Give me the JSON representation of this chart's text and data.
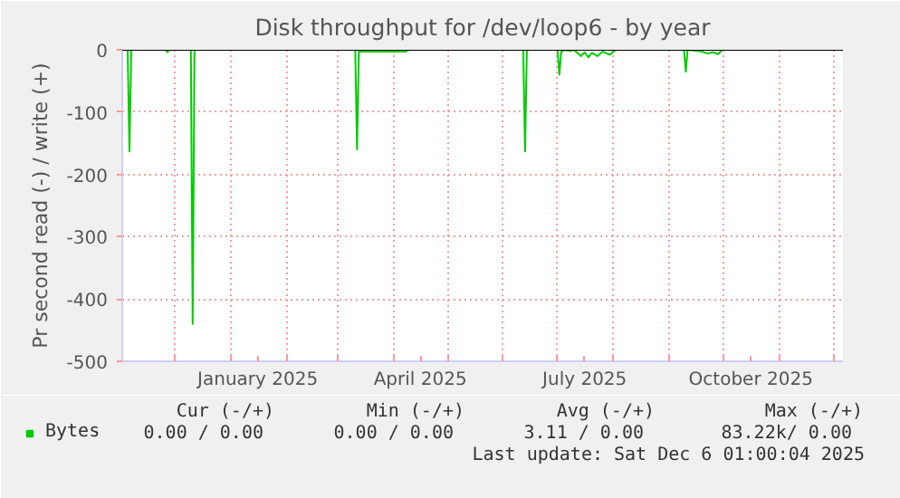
{
  "chart_data": {
    "type": "line",
    "title": "Disk throughput for /dev/loop6 - by year",
    "ylabel": "Pr second read (-) / write (+)",
    "x": [
      "2024-11-02",
      "2024-11-05",
      "2024-11-06",
      "2024-11-07",
      "2024-11-26",
      "2024-11-27",
      "2024-11-28",
      "2024-12-10",
      "2024-12-11",
      "2024-12-12",
      "2025-03-11",
      "2025-03-12",
      "2025-03-13",
      "2025-04-08",
      "2025-04-09",
      "2025-06-12",
      "2025-06-13",
      "2025-06-14",
      "2025-07-01",
      "2025-07-02",
      "2025-07-03",
      "2025-07-05",
      "2025-07-08",
      "2025-07-10",
      "2025-07-14",
      "2025-07-16",
      "2025-07-18",
      "2025-07-20",
      "2025-07-23",
      "2025-07-26",
      "2025-07-30",
      "2025-08-02",
      "2025-09-09",
      "2025-09-10",
      "2025-09-11",
      "2025-09-19",
      "2025-09-22",
      "2025-09-25",
      "2025-09-28",
      "2025-09-30",
      "2025-12-06"
    ],
    "series": [
      {
        "name": "Bytes",
        "color": "#00cc00",
        "values": [
          0,
          0,
          -163,
          0,
          0,
          -4,
          0,
          0,
          -440,
          0,
          0,
          -160,
          -3,
          -3,
          0,
          0,
          -163,
          0,
          0,
          -40,
          -3,
          0,
          -2,
          0,
          -10,
          -4,
          -12,
          -5,
          -10,
          -3,
          -8,
          0,
          0,
          -35,
          0,
          -3,
          -6,
          -4,
          -7,
          0,
          0
        ]
      }
    ],
    "xlim": [
      "2024-11-02",
      "2025-12-06"
    ],
    "xticks": [
      {
        "value": "2024-12-01",
        "label": null
      },
      {
        "value": "2025-01-01",
        "label": null
      },
      {
        "value": "2025-01-16",
        "label": "January 2025"
      },
      {
        "value": "2025-02-01",
        "label": null
      },
      {
        "value": "2025-03-01",
        "label": null
      },
      {
        "value": "2025-04-01",
        "label": null
      },
      {
        "value": "2025-04-16",
        "label": "April 2025"
      },
      {
        "value": "2025-05-01",
        "label": null
      },
      {
        "value": "2025-06-01",
        "label": null
      },
      {
        "value": "2025-07-01",
        "label": null
      },
      {
        "value": "2025-07-16",
        "label": "July 2025"
      },
      {
        "value": "2025-08-01",
        "label": null
      },
      {
        "value": "2025-09-01",
        "label": null
      },
      {
        "value": "2025-10-01",
        "label": null
      },
      {
        "value": "2025-10-16",
        "label": "October 2025"
      },
      {
        "value": "2025-11-01",
        "label": null
      },
      {
        "value": "2025-12-01",
        "label": null
      }
    ],
    "ylim": [
      -500,
      0
    ],
    "yticks": [
      -500,
      -400,
      -300,
      -200,
      -100,
      0
    ],
    "ref_lines": [
      {
        "axis": "y",
        "value": 0,
        "color": "#000000"
      }
    ],
    "grid": true,
    "legend": "bottom",
    "marker": "none",
    "line_style": "solid",
    "annotations": [
      "Cur (-/+)",
      "Min (-/+)",
      "Avg (-/+)",
      "Max (-/+)",
      "0.00 /  0.00",
      "0.00 /  0.00",
      "3.11 /  0.00",
      "83.22k/  0.00",
      "Last update: Sat Dec  6 01:00:04 2025"
    ]
  }
}
